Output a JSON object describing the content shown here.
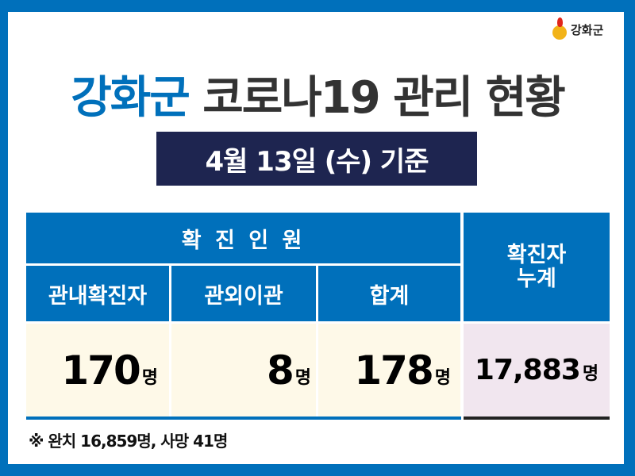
{
  "logo": {
    "text": "강화군"
  },
  "title": {
    "highlight": "강화군",
    "rest": "코로나19 관리 현황"
  },
  "date": "4월  13일 (수) 기준",
  "table": {
    "group_header": "확 진 인 원",
    "cumulative_header": "확진자\n누계",
    "columns": [
      "관내확진자",
      "관외이관",
      "합계"
    ],
    "values": [
      {
        "n": "170",
        "u": "명"
      },
      {
        "n": "8",
        "u": "명"
      },
      {
        "n": "178",
        "u": "명"
      }
    ],
    "cumulative": {
      "n": "17,883",
      "u": "명"
    }
  },
  "footnote": "※ 완치 16,859명, 사망 41명",
  "colors": {
    "frame": "#0070bb",
    "navy": "#1e2550",
    "cream": "#fef9e8",
    "lavender": "#f1e6ef"
  }
}
